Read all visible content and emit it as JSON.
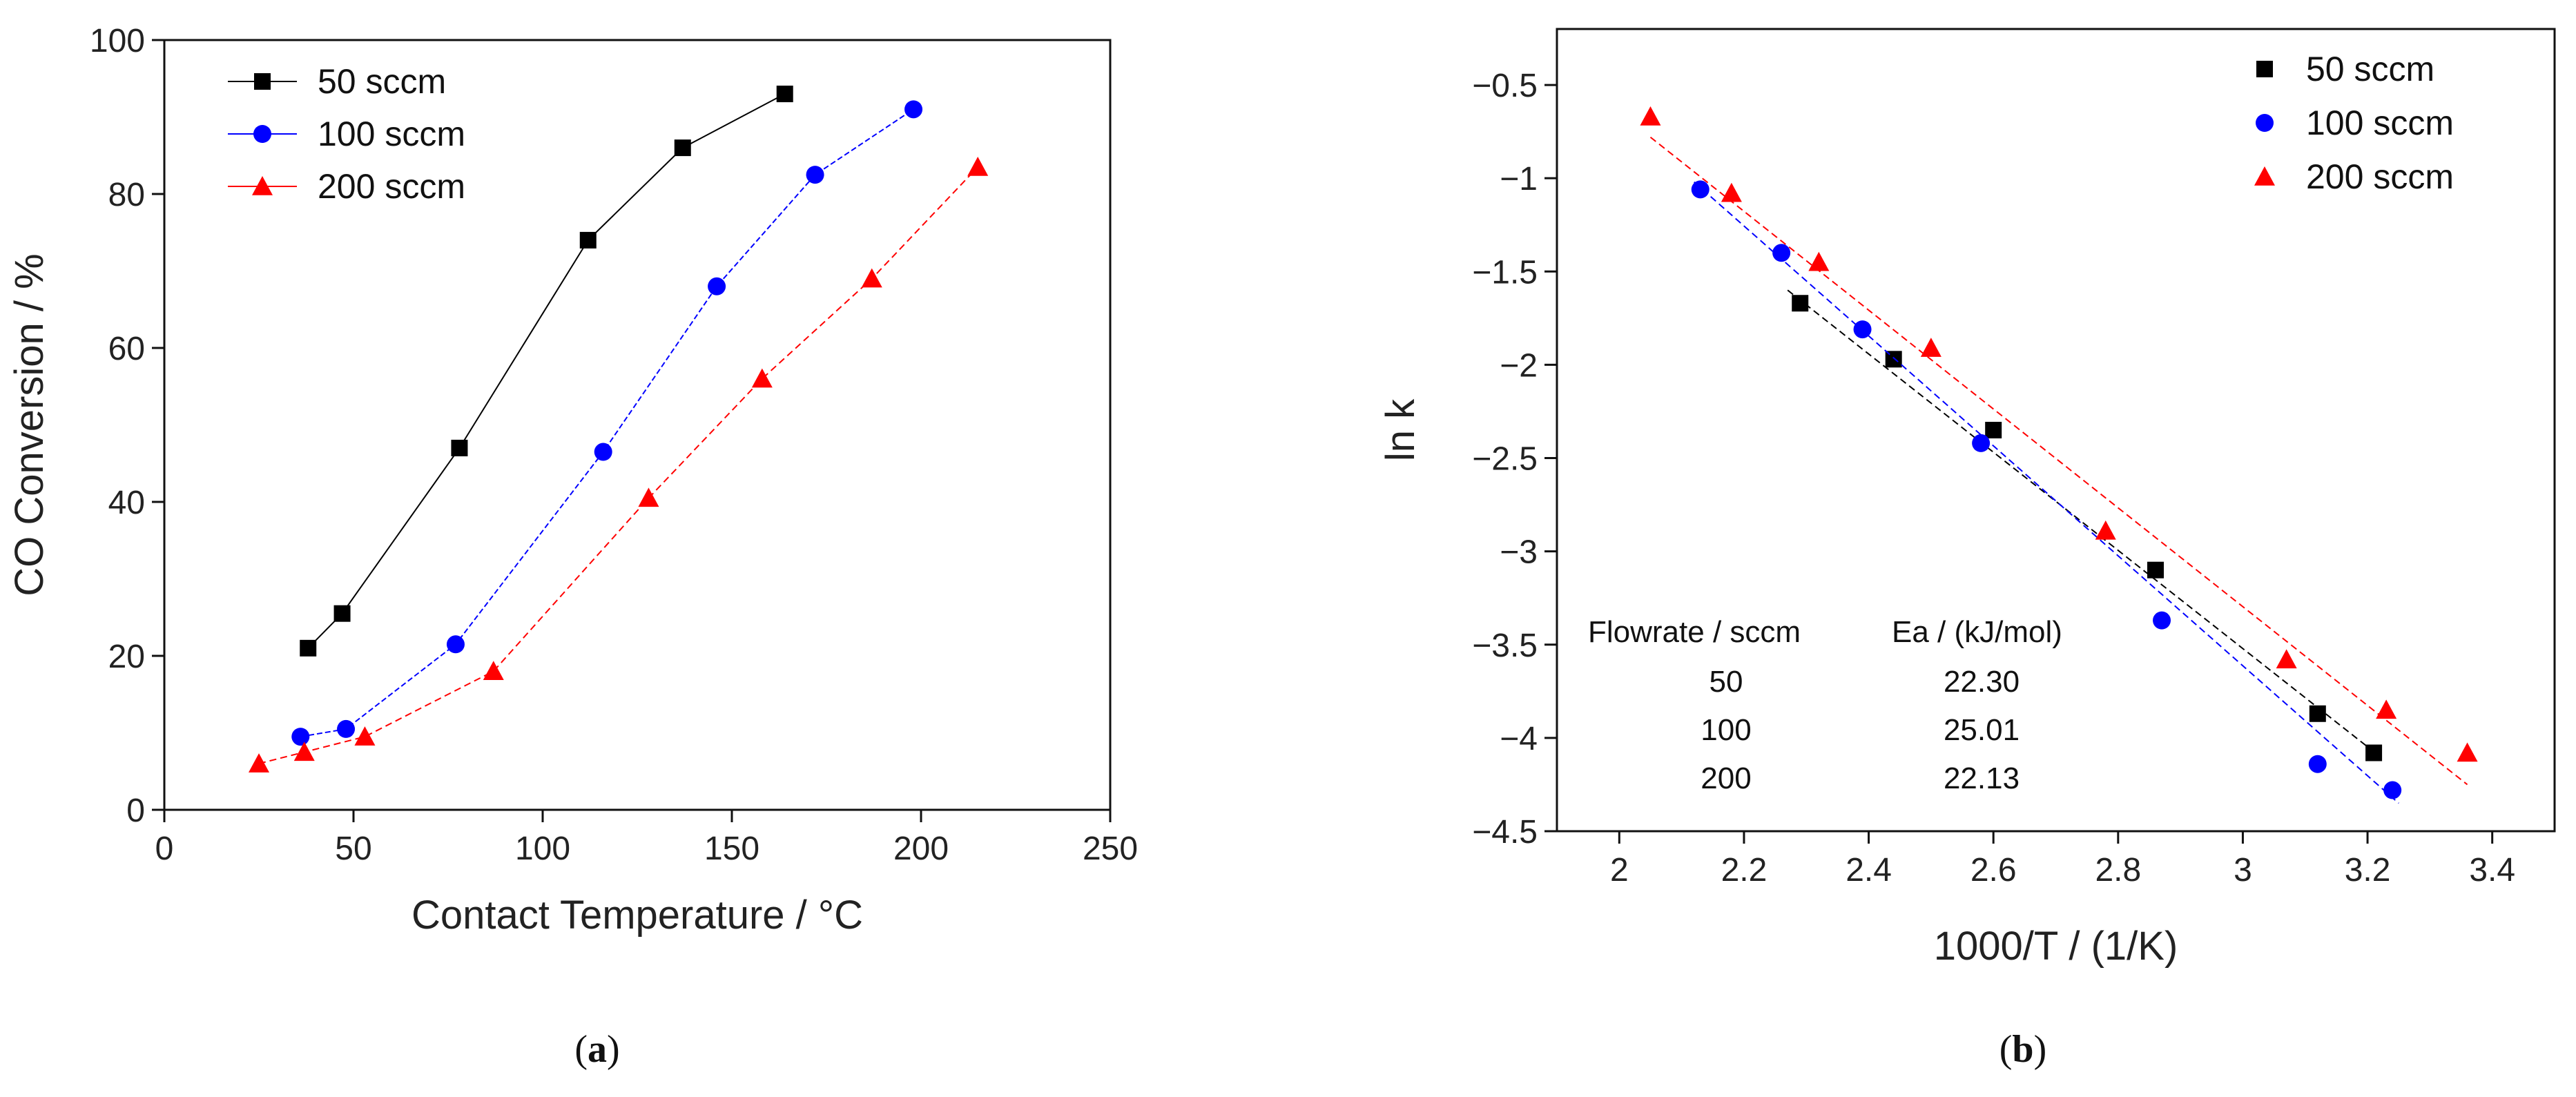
{
  "chart_data": [
    {
      "id": "a",
      "type": "line",
      "panel_label": "(a)",
      "panel_letter": "a",
      "panel_open": "(",
      "panel_close": ")",
      "title": "",
      "xlabel": "Contact Temperature / °C",
      "ylabel": "CO Conversion / %",
      "xlim": [
        0,
        250
      ],
      "ylim": [
        0,
        100
      ],
      "xticks": [
        0,
        50,
        100,
        150,
        200,
        250
      ],
      "yticks": [
        0,
        20,
        40,
        60,
        80,
        100
      ],
      "legend_position": "top-left",
      "series": [
        {
          "name": "50 sccm",
          "marker": "square",
          "color": "#000000",
          "x": [
            38,
            47,
            78,
            112,
            137,
            164
          ],
          "y": [
            21,
            25.5,
            47,
            74,
            86,
            93
          ]
        },
        {
          "name": "100 sccm",
          "marker": "circle",
          "color": "#0000ff",
          "x": [
            36,
            48,
            77,
            116,
            146,
            172,
            198
          ],
          "y": [
            9.5,
            10.5,
            21.5,
            46.5,
            68,
            82.5,
            91
          ]
        },
        {
          "name": "200 sccm",
          "marker": "triangle",
          "color": "#ff0000",
          "x": [
            25,
            37,
            53,
            87,
            128,
            158,
            187,
            215
          ],
          "y": [
            6,
            7.5,
            9.5,
            18,
            40.5,
            56,
            69,
            83.5
          ]
        }
      ]
    },
    {
      "id": "b",
      "type": "scatter",
      "panel_label": "(b)",
      "panel_letter": "b",
      "panel_open": "(",
      "panel_close": ")",
      "title": "",
      "xlabel": "1000/T / (1/K)",
      "ylabel": "ln k",
      "xlim": [
        1.9,
        3.5
      ],
      "ylim": [
        -4.5,
        -0.2
      ],
      "xticks": [
        2,
        2.2,
        2.4,
        2.6,
        2.8,
        3,
        3.2,
        3.4
      ],
      "yticks": [
        -0.5,
        -1,
        -1.5,
        -2,
        -2.5,
        -3,
        -3.5,
        -4,
        -4.5
      ],
      "xtick_labels": [
        "2",
        "2.2",
        "2.4",
        "2.6",
        "2.8",
        "3",
        "3.2",
        "3.4"
      ],
      "ytick_labels": [
        "-0.5",
        "-1",
        "-1.5",
        "-2",
        "-2.5",
        "-3",
        "-3.5",
        "-4",
        "-4.5"
      ],
      "legend_position": "top-right",
      "series": [
        {
          "name": "50 sccm",
          "marker": "square",
          "color": "#000000",
          "x": [
            2.29,
            2.44,
            2.6,
            2.86,
            3.12,
            3.21
          ],
          "y": [
            -1.67,
            -1.97,
            -2.35,
            -3.1,
            -3.87,
            -4.08
          ],
          "fit": [
            [
              2.27,
              -1.6
            ],
            [
              3.22,
              -4.1
            ]
          ]
        },
        {
          "name": "100 sccm",
          "marker": "circle",
          "color": "#0000ff",
          "x": [
            2.13,
            2.26,
            2.39,
            2.58,
            2.87,
            3.12,
            3.24
          ],
          "y": [
            -1.06,
            -1.4,
            -1.81,
            -2.42,
            -3.37,
            -4.14,
            -4.28
          ],
          "fit": [
            [
              2.12,
              -1.02
            ],
            [
              3.25,
              -4.35
            ]
          ]
        },
        {
          "name": "200 sccm",
          "marker": "triangle",
          "color": "#ff0000",
          "x": [
            2.05,
            2.18,
            2.32,
            2.5,
            2.78,
            3.07,
            3.23,
            3.36
          ],
          "y": [
            -0.67,
            -1.08,
            -1.45,
            -1.91,
            -2.89,
            -3.58,
            -3.85,
            -4.08
          ],
          "fit": [
            [
              2.05,
              -0.78
            ],
            [
              3.36,
              -4.25
            ]
          ]
        }
      ],
      "annotation_table": {
        "headers": [
          "Flowrate / sccm",
          "Ea / (kJ/mol)"
        ],
        "rows": [
          [
            "50",
            "22.30"
          ],
          [
            "100",
            "25.01"
          ],
          [
            "200",
            "22.13"
          ]
        ]
      }
    }
  ]
}
